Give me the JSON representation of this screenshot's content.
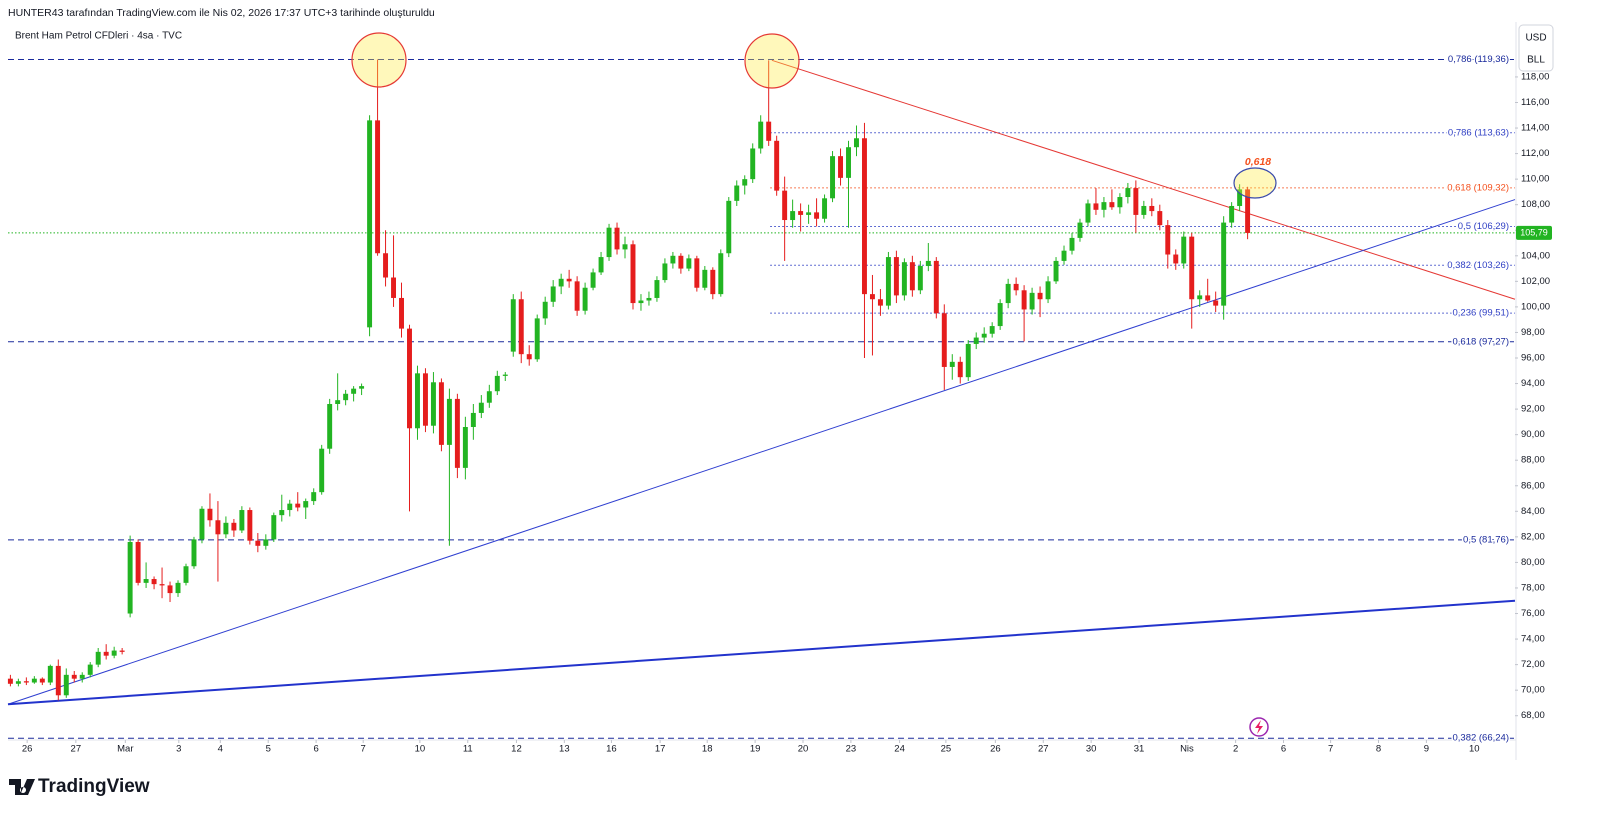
{
  "chart_data": {
    "type": "candlestick",
    "header": "HUNTER43 tarafından TradingView.com ile Nis 02, 2026 17:37 UTC+3 tarihinde oluşturuldu",
    "title": "Brent Ham Petrol CFDleri · 4sa · TVC",
    "currency": "USD",
    "unit": "BLL",
    "brand": "TradingView",
    "up_color": "#22b422",
    "down_color": "#e51d1d",
    "ylim": [
      66.1,
      122.3
    ],
    "yticks": [
      {
        "value": 68,
        "label": "68,00"
      },
      {
        "value": 70,
        "label": "70,00"
      },
      {
        "value": 72,
        "label": "72,00"
      },
      {
        "value": 74,
        "label": "74,00"
      },
      {
        "value": 76,
        "label": "76,00"
      },
      {
        "value": 78,
        "label": "78,00"
      },
      {
        "value": 80,
        "label": "80,00"
      },
      {
        "value": 82,
        "label": "82,00"
      },
      {
        "value": 84,
        "label": "84,00"
      },
      {
        "value": 86,
        "label": "86,00"
      },
      {
        "value": 88,
        "label": "88,00"
      },
      {
        "value": 90,
        "label": "90,00"
      },
      {
        "value": 92,
        "label": "92,00"
      },
      {
        "value": 94,
        "label": "94,00"
      },
      {
        "value": 96,
        "label": "96,00"
      },
      {
        "value": 98,
        "label": "98,00"
      },
      {
        "value": 100,
        "label": "100,00"
      },
      {
        "value": 102,
        "label": "102,00"
      },
      {
        "value": 104,
        "label": "104,00"
      },
      {
        "value": 106,
        "label": "106,00"
      },
      {
        "value": 108,
        "label": "108,00"
      },
      {
        "value": 110,
        "label": "110,00"
      },
      {
        "value": 112,
        "label": "112,00"
      },
      {
        "value": 114,
        "label": "114,00"
      },
      {
        "value": 116,
        "label": "116,00"
      },
      {
        "value": 118,
        "label": "118,00"
      }
    ],
    "xlim": [
      -0.3,
      188.5
    ],
    "xticks": [
      {
        "value": 2.1,
        "label": "26"
      },
      {
        "value": 8.2,
        "label": "27"
      },
      {
        "value": 14.4,
        "label": "Mar"
      },
      {
        "value": 21.1,
        "label": "3"
      },
      {
        "value": 26.3,
        "label": "4"
      },
      {
        "value": 32.3,
        "label": "5"
      },
      {
        "value": 38.3,
        "label": "6"
      },
      {
        "value": 44.2,
        "label": "7"
      },
      {
        "value": 51.3,
        "label": "10"
      },
      {
        "value": 57.3,
        "label": "11"
      },
      {
        "value": 63.4,
        "label": "12"
      },
      {
        "value": 69.4,
        "label": "13"
      },
      {
        "value": 75.3,
        "label": "16"
      },
      {
        "value": 81.4,
        "label": "17"
      },
      {
        "value": 87.3,
        "label": "18"
      },
      {
        "value": 93.3,
        "label": "19"
      },
      {
        "value": 99.3,
        "label": "20"
      },
      {
        "value": 105.3,
        "label": "23"
      },
      {
        "value": 111.4,
        "label": "24"
      },
      {
        "value": 117.2,
        "label": "25"
      },
      {
        "value": 123.4,
        "label": "26"
      },
      {
        "value": 129.4,
        "label": "27"
      },
      {
        "value": 135.4,
        "label": "30"
      },
      {
        "value": 141.4,
        "label": "31"
      },
      {
        "value": 147.4,
        "label": "Nis"
      },
      {
        "value": 153.5,
        "label": "2"
      },
      {
        "value": 159.5,
        "label": "6"
      },
      {
        "value": 165.4,
        "label": "7"
      },
      {
        "value": 171.4,
        "label": "8"
      },
      {
        "value": 177.4,
        "label": "9"
      },
      {
        "value": 183.4,
        "label": "10"
      }
    ],
    "ohlc": [
      [
        70.9,
        71.2,
        70.3,
        70.5
      ],
      [
        70.5,
        70.9,
        70.3,
        70.7
      ],
      [
        70.7,
        71.0,
        70.4,
        70.6
      ],
      [
        70.6,
        71.1,
        70.5,
        70.9
      ],
      [
        70.9,
        71.0,
        70.4,
        70.6
      ],
      [
        70.6,
        72.0,
        70.4,
        71.9
      ],
      [
        71.9,
        72.4,
        69.2,
        69.6
      ],
      [
        69.6,
        71.7,
        69.4,
        71.2
      ],
      [
        71.2,
        71.5,
        70.6,
        70.9
      ],
      [
        70.9,
        71.4,
        70.6,
        71.2
      ],
      [
        71.2,
        72.2,
        71.0,
        72.0
      ],
      [
        72.0,
        73.3,
        71.8,
        73.0
      ],
      [
        73.0,
        73.6,
        72.4,
        72.7
      ],
      [
        72.7,
        73.4,
        72.5,
        73.1
      ],
      [
        73.1,
        73.3,
        72.8,
        73.0
      ],
      [
        76.0,
        82.1,
        75.7,
        81.6
      ],
      [
        81.6,
        81.8,
        78.2,
        78.4
      ],
      [
        78.4,
        80.0,
        78.0,
        78.7
      ],
      [
        78.7,
        78.9,
        77.9,
        78.3
      ],
      [
        78.3,
        79.6,
        77.2,
        78.2
      ],
      [
        78.2,
        78.5,
        76.9,
        77.6
      ],
      [
        77.6,
        78.6,
        77.3,
        78.4
      ],
      [
        78.4,
        79.9,
        78.2,
        79.7
      ],
      [
        79.7,
        82.0,
        79.5,
        81.8
      ],
      [
        81.8,
        84.4,
        81.5,
        84.2
      ],
      [
        84.2,
        85.4,
        82.8,
        83.3
      ],
      [
        83.3,
        84.8,
        78.5,
        82.2
      ],
      [
        82.2,
        83.6,
        81.9,
        83.1
      ],
      [
        83.1,
        83.4,
        82.0,
        82.5
      ],
      [
        82.5,
        84.4,
        82.3,
        84.1
      ],
      [
        84.1,
        84.3,
        81.4,
        81.7
      ],
      [
        81.7,
        82.3,
        80.8,
        81.3
      ],
      [
        81.3,
        82.2,
        81.0,
        81.8
      ],
      [
        81.8,
        83.9,
        81.6,
        83.7
      ],
      [
        83.7,
        85.3,
        83.2,
        84.1
      ],
      [
        84.1,
        84.9,
        83.6,
        84.6
      ],
      [
        84.6,
        85.5,
        84.0,
        84.3
      ],
      [
        84.3,
        85.0,
        83.4,
        84.8
      ],
      [
        84.8,
        85.8,
        84.5,
        85.5
      ],
      [
        85.5,
        89.2,
        85.3,
        88.9
      ],
      [
        88.9,
        92.8,
        88.5,
        92.4
      ],
      [
        92.4,
        94.8,
        91.9,
        92.7
      ],
      [
        92.7,
        93.5,
        92.3,
        93.2
      ],
      [
        93.2,
        93.8,
        92.6,
        93.6
      ],
      [
        93.6,
        94.0,
        93.1,
        93.8
      ],
      [
        98.4,
        115.0,
        97.7,
        114.6
      ],
      [
        114.6,
        119.36,
        104.0,
        104.2
      ],
      [
        104.2,
        106.0,
        101.6,
        102.3
      ],
      [
        102.3,
        105.6,
        100.0,
        100.7
      ],
      [
        100.7,
        101.9,
        97.6,
        98.3
      ],
      [
        98.3,
        98.6,
        84.0,
        90.5
      ],
      [
        90.5,
        95.4,
        89.6,
        94.8
      ],
      [
        94.8,
        95.2,
        90.2,
        90.7
      ],
      [
        90.7,
        94.9,
        90.1,
        94.1
      ],
      [
        94.1,
        94.4,
        88.7,
        89.2
      ],
      [
        89.2,
        93.6,
        81.3,
        92.8
      ],
      [
        92.8,
        93.2,
        86.6,
        87.4
      ],
      [
        87.4,
        91.4,
        86.5,
        90.6
      ],
      [
        90.6,
        92.4,
        89.6,
        91.7
      ],
      [
        91.7,
        93.1,
        91.3,
        92.5
      ],
      [
        92.5,
        93.9,
        92.1,
        93.4
      ],
      [
        93.4,
        95.0,
        93.1,
        94.6
      ],
      [
        94.6,
        94.9,
        94.2,
        94.7
      ],
      [
        96.5,
        101.0,
        96.1,
        100.6
      ],
      [
        100.6,
        101.2,
        95.6,
        96.3
      ],
      [
        96.3,
        97.0,
        95.4,
        95.9
      ],
      [
        95.9,
        99.4,
        95.7,
        99.1
      ],
      [
        99.1,
        100.8,
        98.6,
        100.4
      ],
      [
        100.4,
        102.1,
        100.0,
        101.6
      ],
      [
        101.6,
        102.6,
        101.0,
        102.2
      ],
      [
        102.2,
        102.9,
        101.5,
        102.0
      ],
      [
        102.0,
        102.4,
        99.3,
        99.7
      ],
      [
        99.7,
        101.9,
        99.4,
        101.5
      ],
      [
        101.5,
        103.0,
        101.3,
        102.7
      ],
      [
        102.7,
        104.3,
        102.5,
        103.9
      ],
      [
        103.9,
        106.5,
        103.6,
        106.2
      ],
      [
        106.2,
        106.6,
        104.1,
        104.5
      ],
      [
        104.5,
        105.5,
        103.8,
        104.9
      ],
      [
        104.9,
        105.2,
        99.8,
        100.3
      ],
      [
        100.3,
        101.0,
        99.7,
        100.5
      ],
      [
        100.5,
        101.2,
        100.1,
        100.7
      ],
      [
        100.7,
        102.4,
        100.4,
        102.1
      ],
      [
        102.1,
        103.8,
        101.9,
        103.4
      ],
      [
        103.4,
        104.3,
        103.0,
        104.0
      ],
      [
        104.0,
        104.2,
        102.6,
        103.0
      ],
      [
        103.0,
        104.1,
        102.8,
        103.8
      ],
      [
        103.8,
        104.0,
        101.2,
        101.5
      ],
      [
        101.5,
        103.2,
        101.3,
        102.9
      ],
      [
        102.9,
        103.1,
        100.6,
        101.0
      ],
      [
        101.0,
        104.5,
        100.8,
        104.2
      ],
      [
        104.2,
        108.6,
        103.9,
        108.3
      ],
      [
        108.3,
        109.9,
        107.9,
        109.5
      ],
      [
        109.5,
        110.3,
        108.8,
        110.0
      ],
      [
        110.0,
        112.8,
        109.7,
        112.4
      ],
      [
        112.4,
        115.0,
        112.0,
        114.5
      ],
      [
        114.5,
        119.3,
        112.6,
        113.0
      ],
      [
        113.0,
        113.4,
        108.7,
        109.1
      ],
      [
        109.1,
        110.2,
        103.6,
        106.8
      ],
      [
        106.8,
        108.4,
        106.2,
        107.5
      ],
      [
        107.5,
        108.1,
        105.9,
        107.2
      ],
      [
        107.2,
        108.0,
        106.5,
        107.4
      ],
      [
        107.4,
        108.5,
        106.3,
        106.9
      ],
      [
        106.9,
        108.8,
        106.6,
        108.5
      ],
      [
        108.5,
        112.2,
        108.2,
        111.8
      ],
      [
        111.8,
        112.4,
        109.5,
        110.1
      ],
      [
        110.1,
        113.0,
        106.2,
        112.5
      ],
      [
        112.5,
        114.2,
        111.8,
        113.2
      ],
      [
        113.2,
        114.4,
        96.0,
        101.0
      ],
      [
        101.0,
        102.5,
        96.2,
        100.6
      ],
      [
        100.6,
        101.4,
        99.3,
        100.1
      ],
      [
        100.1,
        104.3,
        99.8,
        103.9
      ],
      [
        103.9,
        104.4,
        100.3,
        100.9
      ],
      [
        100.9,
        103.8,
        100.5,
        103.5
      ],
      [
        103.5,
        104.0,
        100.8,
        101.3
      ],
      [
        101.3,
        103.6,
        101.0,
        103.2
      ],
      [
        103.2,
        105.0,
        102.8,
        103.6
      ],
      [
        103.6,
        103.9,
        99.1,
        99.5
      ],
      [
        99.5,
        100.2,
        93.5,
        95.3
      ],
      [
        95.3,
        96.3,
        94.3,
        95.7
      ],
      [
        95.7,
        96.1,
        94.0,
        94.5
      ],
      [
        94.5,
        97.4,
        94.2,
        97.1
      ],
      [
        97.1,
        98.0,
        96.7,
        97.6
      ],
      [
        97.6,
        98.4,
        97.2,
        97.9
      ],
      [
        97.9,
        98.8,
        97.6,
        98.5
      ],
      [
        98.5,
        100.6,
        98.2,
        100.3
      ],
      [
        100.3,
        102.2,
        99.9,
        101.8
      ],
      [
        101.8,
        102.3,
        100.9,
        101.3
      ],
      [
        101.3,
        101.7,
        97.3,
        99.8
      ],
      [
        99.8,
        101.5,
        99.4,
        101.1
      ],
      [
        101.1,
        101.6,
        99.2,
        100.6
      ],
      [
        100.6,
        102.4,
        100.3,
        102.0
      ],
      [
        102.0,
        103.9,
        101.8,
        103.6
      ],
      [
        103.6,
        104.8,
        103.3,
        104.4
      ],
      [
        104.4,
        105.8,
        104.1,
        105.4
      ],
      [
        105.4,
        106.9,
        105.1,
        106.6
      ],
      [
        106.6,
        108.4,
        106.3,
        108.1
      ],
      [
        108.1,
        109.3,
        107.2,
        107.6
      ],
      [
        107.6,
        108.6,
        107.0,
        108.2
      ],
      [
        108.2,
        109.2,
        107.6,
        107.8
      ],
      [
        107.8,
        108.9,
        107.3,
        108.6
      ],
      [
        108.6,
        109.7,
        108.1,
        109.3
      ],
      [
        109.3,
        109.9,
        105.8,
        107.2
      ],
      [
        107.2,
        108.3,
        106.9,
        107.9
      ],
      [
        107.9,
        108.5,
        107.1,
        107.5
      ],
      [
        107.5,
        108.0,
        106.0,
        106.4
      ],
      [
        106.4,
        106.8,
        103.0,
        104.1
      ],
      [
        104.1,
        104.5,
        102.9,
        103.4
      ],
      [
        103.4,
        105.9,
        103.0,
        105.5
      ],
      [
        105.5,
        105.8,
        98.3,
        100.6
      ],
      [
        100.6,
        101.3,
        100.0,
        100.9
      ],
      [
        100.9,
        102.2,
        100.4,
        100.5
      ],
      [
        100.5,
        101.2,
        99.6,
        100.1
      ],
      [
        100.1,
        107.1,
        99.0,
        106.6
      ],
      [
        106.6,
        108.2,
        106.2,
        107.9
      ],
      [
        107.9,
        109.6,
        107.5,
        109.2
      ],
      [
        109.2,
        109.4,
        105.3,
        105.79
      ]
    ],
    "last_price": {
      "value": 105.79,
      "label": "105,79",
      "color": "#22b422"
    },
    "levels": [
      {
        "value": 119.36,
        "label": "0,786 (119,36)",
        "color": "#1a2a9c",
        "style": "dashed",
        "x_start": -0.3
      },
      {
        "value": 113.63,
        "label": "0,786 (113,63)",
        "color": "#2f3fc4",
        "style": "dotted",
        "x_start": 95.2
      },
      {
        "value": 109.32,
        "label": "0,618 (109,32)",
        "color": "#f4511e",
        "style": "dotted",
        "x_start": 95.2
      },
      {
        "value": 106.29,
        "label": "0,5 (106,29)",
        "color": "#2f3fc4",
        "style": "dotted",
        "x_start": 95.2
      },
      {
        "value": 103.26,
        "label": "0,382 (103,26)",
        "color": "#2f3fc4",
        "style": "dotted",
        "x_start": 95.2
      },
      {
        "value": 99.51,
        "label": "0,236 (99,51)",
        "color": "#2f3fc4",
        "style": "dotted",
        "x_start": 95.2
      },
      {
        "value": 97.27,
        "label": "0,618 (97,27)",
        "color": "#1a2a9c",
        "style": "dashed",
        "x_start": -0.3
      },
      {
        "value": 81.76,
        "label": "0,5 (81,76)",
        "color": "#1a2a9c",
        "style": "dashed",
        "x_start": -0.3
      },
      {
        "value": 66.24,
        "label": "0,382 (66,24)",
        "color": "#1a2a9c",
        "style": "dashed",
        "x_start": -0.3
      }
    ],
    "trendlines": [
      {
        "x": [
          95.4,
          188.5
        ],
        "y": [
          119.3,
          100.6
        ],
        "color": "#e53935",
        "width": 1
      },
      {
        "x": [
          -0.3,
          188.5
        ],
        "y": [
          68.9,
          108.4
        ],
        "color": "#2f3fd0",
        "width": 1
      },
      {
        "x": [
          -0.3,
          188.5
        ],
        "y": [
          68.9,
          77.0
        ],
        "color": "#2233cc",
        "width": 2
      }
    ],
    "annotation": {
      "text": "0,618",
      "color": "#f4511e"
    }
  }
}
